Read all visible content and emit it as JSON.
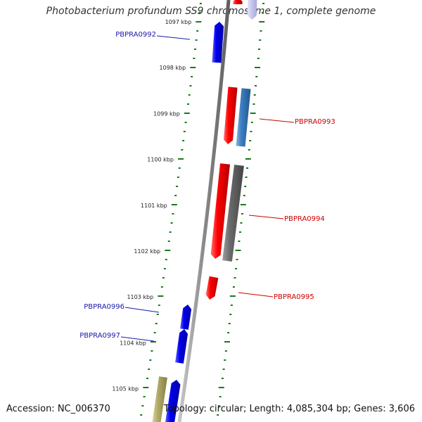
{
  "title": "Photobacterium profundum SS9 chromosome 1, complete genome",
  "footer": {
    "accession": "Accession: NC_006370",
    "summary": "Topology: circular; Length: 4,085,304 bp; Genes: 3,606"
  },
  "colors": {
    "tick": "#1a7a1a",
    "backbone": "#888888",
    "label_blue": "#1a1aa8",
    "label_red": "#cc0000",
    "gene_red": "#ff0000",
    "gene_blue": "#0000ee",
    "gene_steelblue": "#3b7fc4",
    "gene_gray": "#6a6a6a",
    "gene_olive": "#b5ad6a",
    "gene_faint": "#c8c8f0"
  },
  "scale": {
    "labels": [
      "1097 kbp",
      "1098 kbp",
      "1099 kbp",
      "1100 kbp",
      "1101 kbp",
      "1102 kbp",
      "1103 kbp",
      "1104 kbp",
      "1105 kbp"
    ]
  },
  "gene_labels": [
    {
      "text": "PBPRA0992",
      "color": "blue"
    },
    {
      "text": "PBPRA0993",
      "color": "red"
    },
    {
      "text": "PBPRA0994",
      "color": "red"
    },
    {
      "text": "PBPRA0995",
      "color": "red"
    },
    {
      "text": "PBPRA0996",
      "color": "blue"
    },
    {
      "text": "PBPRA0997",
      "color": "blue"
    }
  ],
  "genes": [
    {
      "name": "gene-top-red",
      "color": "red"
    },
    {
      "name": "gene-top-faint",
      "color": "faint"
    },
    {
      "name": "gene-pbpra0992",
      "color": "blue"
    },
    {
      "name": "gene-pbpra0993-red",
      "color": "red"
    },
    {
      "name": "gene-pbpra0993-steel",
      "color": "steelblue"
    },
    {
      "name": "gene-pbpra0994-red",
      "color": "red"
    },
    {
      "name": "gene-pbpra0994-gray",
      "color": "gray"
    },
    {
      "name": "gene-pbpra0995",
      "color": "red"
    },
    {
      "name": "gene-pbpra0996",
      "color": "blue"
    },
    {
      "name": "gene-pbpra0997",
      "color": "blue"
    },
    {
      "name": "gene-bottom-olive",
      "color": "olive"
    },
    {
      "name": "gene-bottom-blue",
      "color": "blue"
    }
  ]
}
